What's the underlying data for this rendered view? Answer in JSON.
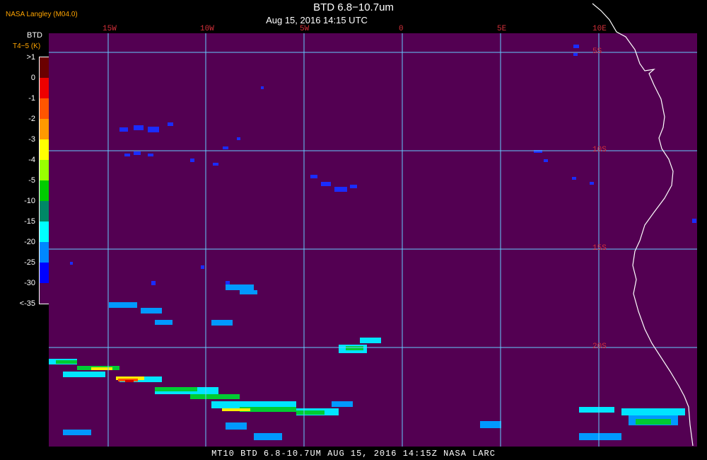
{
  "header": {
    "title": "BTD 6.8−10.7um",
    "datetime": "Aug 15, 2016 14:15 UTC",
    "credit": "NASA Langley (M04.0)"
  },
  "colorbar": {
    "unit_top": "BTD",
    "unit_bottom": "T4−5 (K)",
    "labels": [
      ">1",
      "0",
      "-1",
      "-2",
      "-3",
      "-4",
      "-5",
      "-10",
      "-15",
      "-20",
      "-25",
      "-30",
      "<-35"
    ],
    "colors": [
      "#6b0000",
      "#ee0000",
      "#ff5500",
      "#ff9900",
      "#ffff00",
      "#99ff00",
      "#00cc00",
      "#008866",
      "#00ffff",
      "#0088ff",
      "#0000ff",
      "#530052"
    ]
  },
  "map": {
    "background": "#530052",
    "grid_color": "#66ccff",
    "lon_labels": [
      "15W",
      "10W",
      "5W",
      "0",
      "5E",
      "10E"
    ],
    "lat_labels": [
      "5S",
      "10S",
      "15S",
      "20S"
    ]
  },
  "footer": {
    "text": "MT10   BTD 6.8-10.7UM    AUG 15, 2016 14:15Z    NASA LARC"
  }
}
